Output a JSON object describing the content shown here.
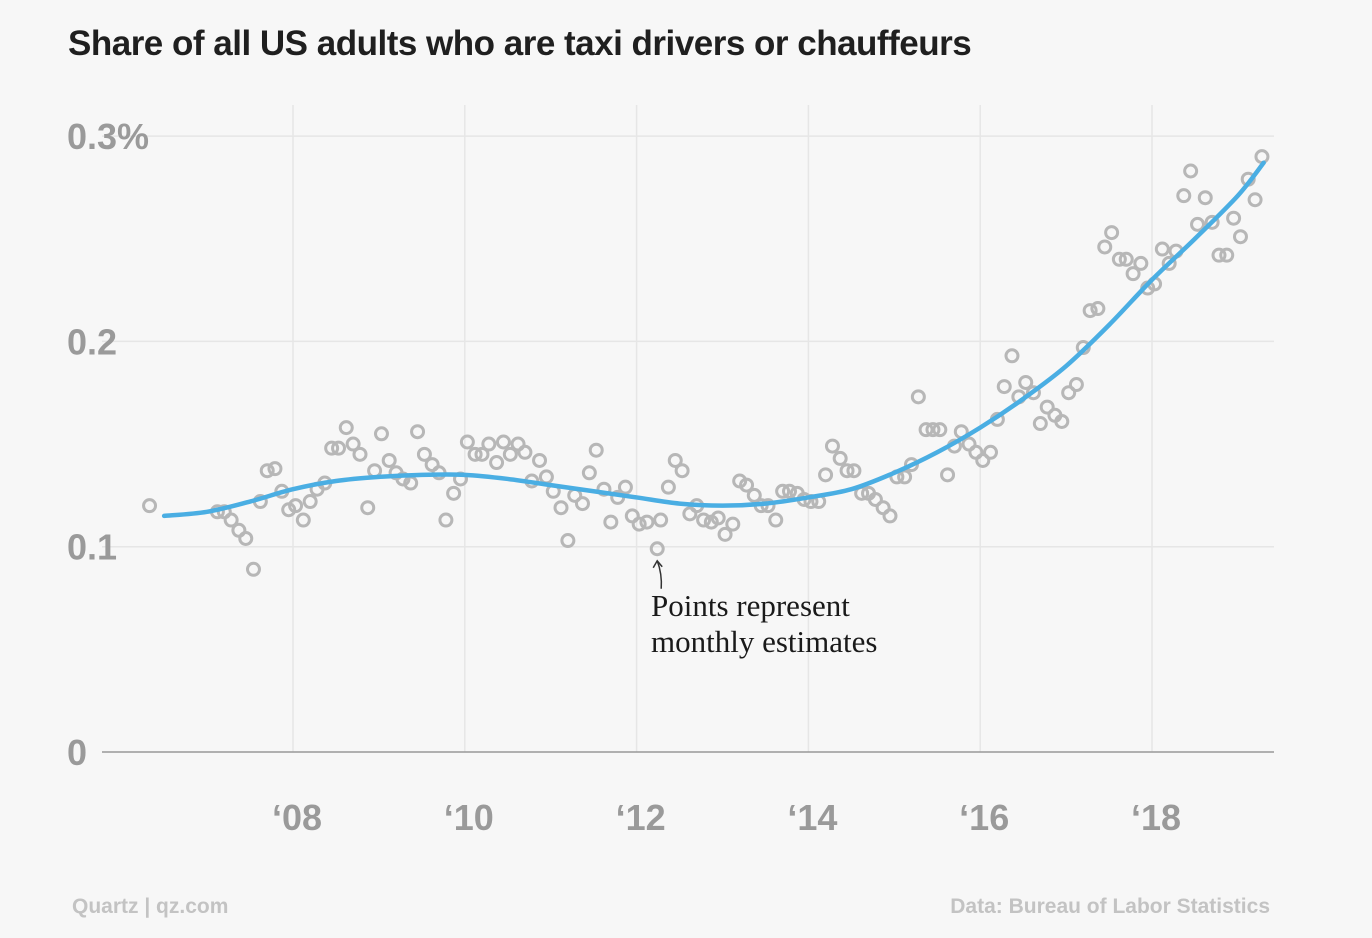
{
  "header": {
    "title": "Share of all US adults who are taxi drivers or chauffeurs"
  },
  "footer": {
    "credit": "Quartz | qz.com",
    "source": "Data: Bureau of Labor Statistics"
  },
  "colors": {
    "background": "#f7f7f7",
    "trend_line": "#4aaee3",
    "points": "#b7b7b7",
    "gridline": "#e6e6e6",
    "baseline": "#999999",
    "tick_text": "#9a9a9a"
  },
  "chart_data": {
    "type": "scatter",
    "title": "Share of all US adults who are taxi drivers or chauffeurs",
    "xlabel": "",
    "ylabel": "",
    "xlim": [
      2006.0,
      2019.5
    ],
    "ylim": [
      0,
      0.3
    ],
    "grid": true,
    "y_ticks": [
      {
        "value": 0.3,
        "label": "0.3%"
      },
      {
        "value": 0.2,
        "label": "0.2"
      },
      {
        "value": 0.1,
        "label": "0.1"
      },
      {
        "value": 0,
        "label": "0"
      }
    ],
    "x_ticks": [
      {
        "value": 2008,
        "label": "‘08"
      },
      {
        "value": 2010,
        "label": "‘10"
      },
      {
        "value": 2012,
        "label": "‘12"
      },
      {
        "value": 2014,
        "label": "‘14"
      },
      {
        "value": 2016,
        "label": "‘16"
      },
      {
        "value": 2018,
        "label": "‘18"
      }
    ],
    "annotation": {
      "lines": [
        "Points represent",
        "monthly estimates"
      ],
      "point_x": 2012.24,
      "point_y": 0.099
    },
    "points": [
      [
        2006.33,
        0.12
      ],
      [
        2007.12,
        0.117
      ],
      [
        2007.2,
        0.117
      ],
      [
        2007.28,
        0.113
      ],
      [
        2007.37,
        0.108
      ],
      [
        2007.45,
        0.104
      ],
      [
        2007.54,
        0.089
      ],
      [
        2007.62,
        0.122
      ],
      [
        2007.7,
        0.137
      ],
      [
        2007.79,
        0.138
      ],
      [
        2007.87,
        0.127
      ],
      [
        2007.95,
        0.118
      ],
      [
        2008.03,
        0.12
      ],
      [
        2008.12,
        0.113
      ],
      [
        2008.2,
        0.122
      ],
      [
        2008.28,
        0.128
      ],
      [
        2008.37,
        0.131
      ],
      [
        2008.45,
        0.148
      ],
      [
        2008.53,
        0.148
      ],
      [
        2008.62,
        0.158
      ],
      [
        2008.7,
        0.15
      ],
      [
        2008.78,
        0.145
      ],
      [
        2008.87,
        0.119
      ],
      [
        2008.95,
        0.137
      ],
      [
        2009.03,
        0.155
      ],
      [
        2009.12,
        0.142
      ],
      [
        2009.2,
        0.136
      ],
      [
        2009.28,
        0.133
      ],
      [
        2009.37,
        0.131
      ],
      [
        2009.45,
        0.156
      ],
      [
        2009.53,
        0.145
      ],
      [
        2009.62,
        0.14
      ],
      [
        2009.7,
        0.136
      ],
      [
        2009.78,
        0.113
      ],
      [
        2009.87,
        0.126
      ],
      [
        2009.95,
        0.133
      ],
      [
        2010.03,
        0.151
      ],
      [
        2010.12,
        0.145
      ],
      [
        2010.2,
        0.145
      ],
      [
        2010.28,
        0.15
      ],
      [
        2010.37,
        0.141
      ],
      [
        2010.45,
        0.151
      ],
      [
        2010.53,
        0.145
      ],
      [
        2010.62,
        0.15
      ],
      [
        2010.7,
        0.146
      ],
      [
        2010.78,
        0.132
      ],
      [
        2010.87,
        0.142
      ],
      [
        2010.95,
        0.134
      ],
      [
        2011.03,
        0.127
      ],
      [
        2011.12,
        0.119
      ],
      [
        2011.2,
        0.103
      ],
      [
        2011.28,
        0.125
      ],
      [
        2011.37,
        0.121
      ],
      [
        2011.45,
        0.136
      ],
      [
        2011.53,
        0.147
      ],
      [
        2011.62,
        0.128
      ],
      [
        2011.7,
        0.112
      ],
      [
        2011.78,
        0.124
      ],
      [
        2011.87,
        0.129
      ],
      [
        2011.95,
        0.115
      ],
      [
        2012.03,
        0.111
      ],
      [
        2012.12,
        0.112
      ],
      [
        2012.24,
        0.099
      ],
      [
        2012.28,
        0.113
      ],
      [
        2012.37,
        0.129
      ],
      [
        2012.45,
        0.142
      ],
      [
        2012.53,
        0.137
      ],
      [
        2012.62,
        0.116
      ],
      [
        2012.7,
        0.12
      ],
      [
        2012.78,
        0.113
      ],
      [
        2012.87,
        0.112
      ],
      [
        2012.95,
        0.114
      ],
      [
        2013.03,
        0.106
      ],
      [
        2013.12,
        0.111
      ],
      [
        2013.2,
        0.132
      ],
      [
        2013.28,
        0.13
      ],
      [
        2013.37,
        0.125
      ],
      [
        2013.45,
        0.12
      ],
      [
        2013.53,
        0.12
      ],
      [
        2013.62,
        0.113
      ],
      [
        2013.7,
        0.127
      ],
      [
        2013.78,
        0.127
      ],
      [
        2013.87,
        0.126
      ],
      [
        2013.95,
        0.123
      ],
      [
        2014.03,
        0.122
      ],
      [
        2014.12,
        0.122
      ],
      [
        2014.2,
        0.135
      ],
      [
        2014.28,
        0.149
      ],
      [
        2014.37,
        0.143
      ],
      [
        2014.45,
        0.137
      ],
      [
        2014.53,
        0.137
      ],
      [
        2014.62,
        0.126
      ],
      [
        2014.7,
        0.126
      ],
      [
        2014.78,
        0.123
      ],
      [
        2014.87,
        0.119
      ],
      [
        2014.95,
        0.115
      ],
      [
        2015.03,
        0.134
      ],
      [
        2015.12,
        0.134
      ],
      [
        2015.2,
        0.14
      ],
      [
        2015.28,
        0.173
      ],
      [
        2015.37,
        0.157
      ],
      [
        2015.45,
        0.157
      ],
      [
        2015.53,
        0.157
      ],
      [
        2015.62,
        0.135
      ],
      [
        2015.7,
        0.149
      ],
      [
        2015.78,
        0.156
      ],
      [
        2015.87,
        0.15
      ],
      [
        2015.95,
        0.146
      ],
      [
        2016.03,
        0.142
      ],
      [
        2016.12,
        0.146
      ],
      [
        2016.2,
        0.162
      ],
      [
        2016.28,
        0.178
      ],
      [
        2016.37,
        0.193
      ],
      [
        2016.45,
        0.173
      ],
      [
        2016.53,
        0.18
      ],
      [
        2016.62,
        0.175
      ],
      [
        2016.7,
        0.16
      ],
      [
        2016.78,
        0.168
      ],
      [
        2016.87,
        0.164
      ],
      [
        2016.95,
        0.161
      ],
      [
        2017.03,
        0.175
      ],
      [
        2017.12,
        0.179
      ],
      [
        2017.2,
        0.197
      ],
      [
        2017.28,
        0.215
      ],
      [
        2017.37,
        0.216
      ],
      [
        2017.45,
        0.246
      ],
      [
        2017.53,
        0.253
      ],
      [
        2017.62,
        0.24
      ],
      [
        2017.7,
        0.24
      ],
      [
        2017.78,
        0.233
      ],
      [
        2017.87,
        0.238
      ],
      [
        2017.95,
        0.226
      ],
      [
        2018.03,
        0.228
      ],
      [
        2018.12,
        0.245
      ],
      [
        2018.2,
        0.238
      ],
      [
        2018.28,
        0.244
      ],
      [
        2018.37,
        0.271
      ],
      [
        2018.45,
        0.283
      ],
      [
        2018.53,
        0.257
      ],
      [
        2018.62,
        0.27
      ],
      [
        2018.7,
        0.258
      ],
      [
        2018.78,
        0.242
      ],
      [
        2018.87,
        0.242
      ],
      [
        2018.95,
        0.26
      ],
      [
        2019.03,
        0.251
      ],
      [
        2019.12,
        0.279
      ],
      [
        2019.2,
        0.269
      ],
      [
        2019.28,
        0.29
      ]
    ],
    "trend": [
      [
        2006.5,
        0.115
      ],
      [
        2007.0,
        0.117
      ],
      [
        2007.5,
        0.122
      ],
      [
        2008.0,
        0.128
      ],
      [
        2008.5,
        0.132
      ],
      [
        2009.0,
        0.134
      ],
      [
        2009.5,
        0.135
      ],
      [
        2010.0,
        0.135
      ],
      [
        2010.5,
        0.133
      ],
      [
        2011.0,
        0.13
      ],
      [
        2011.5,
        0.127
      ],
      [
        2012.0,
        0.124
      ],
      [
        2012.5,
        0.121
      ],
      [
        2013.0,
        0.12
      ],
      [
        2013.5,
        0.121
      ],
      [
        2014.0,
        0.124
      ],
      [
        2014.5,
        0.128
      ],
      [
        2015.0,
        0.136
      ],
      [
        2015.5,
        0.146
      ],
      [
        2016.0,
        0.158
      ],
      [
        2016.5,
        0.172
      ],
      [
        2017.0,
        0.188
      ],
      [
        2017.5,
        0.208
      ],
      [
        2018.0,
        0.23
      ],
      [
        2018.5,
        0.25
      ],
      [
        2019.0,
        0.271
      ],
      [
        2019.3,
        0.287
      ]
    ]
  }
}
